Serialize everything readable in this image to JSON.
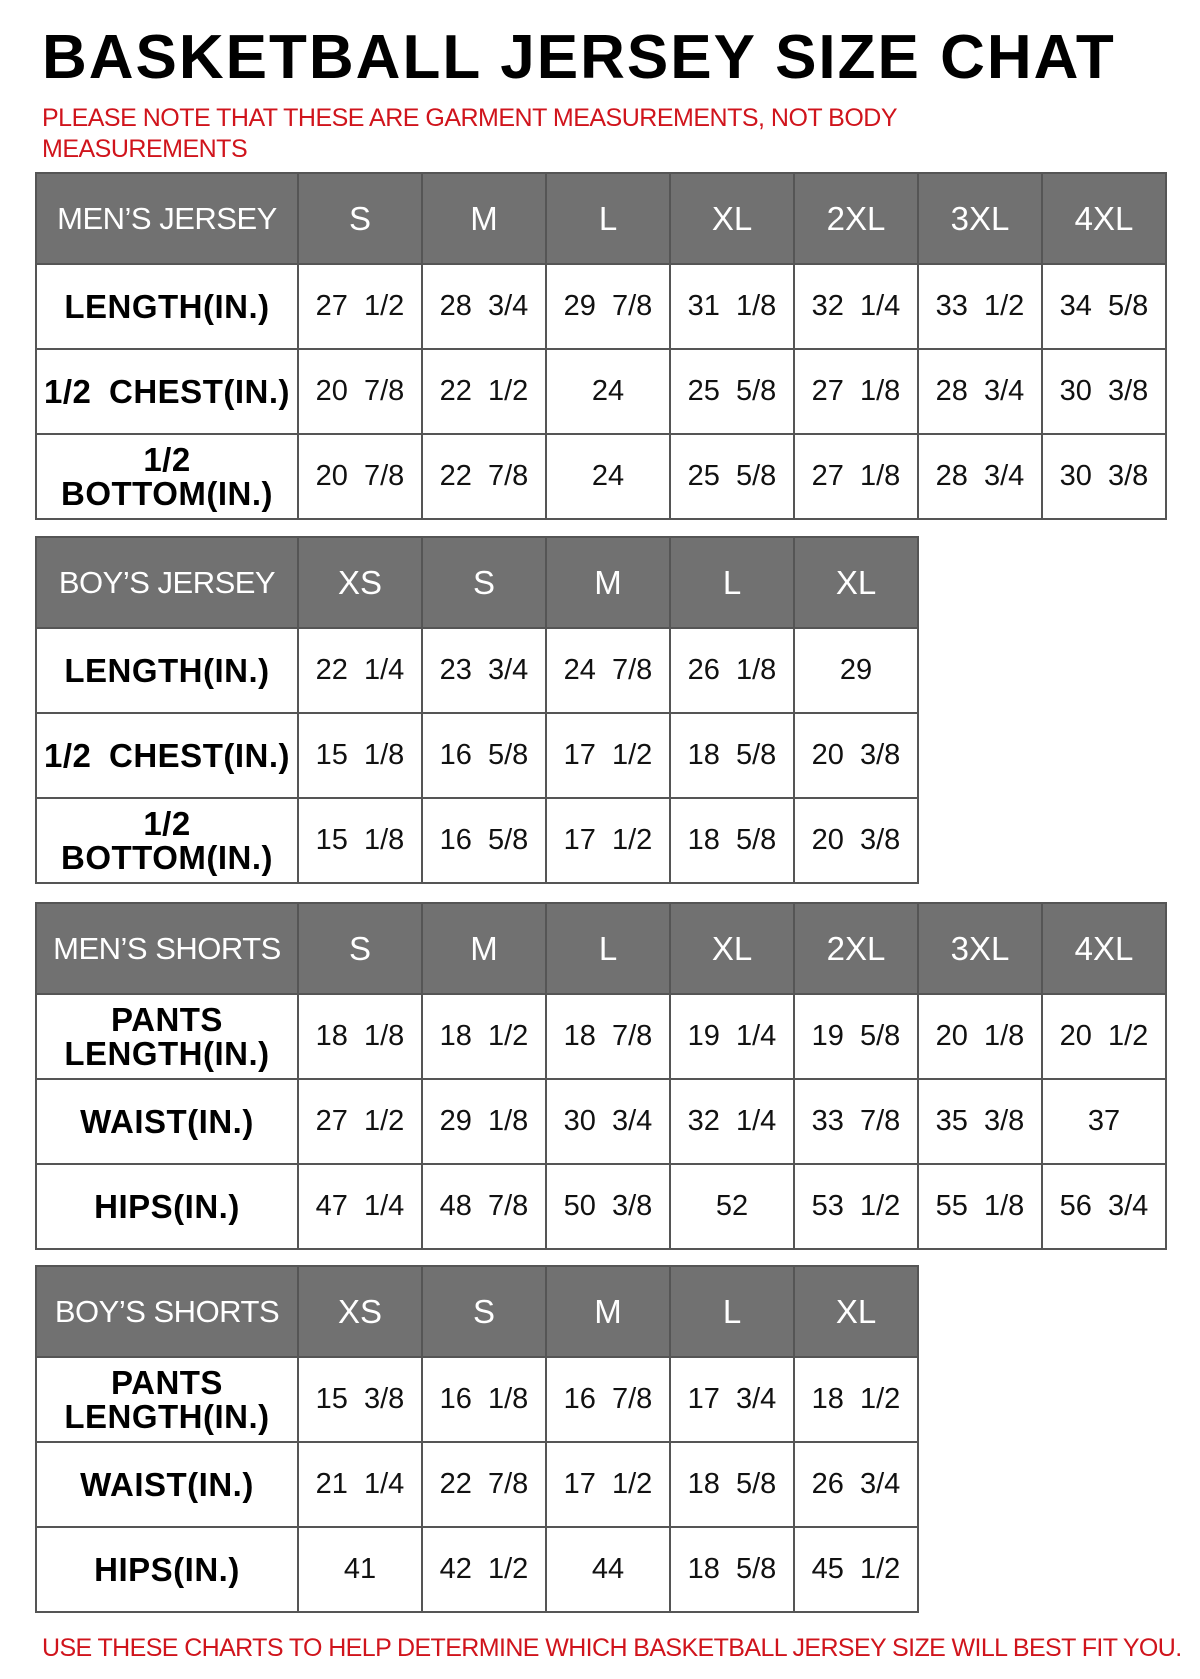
{
  "title": "BASKETBALL JERSEY SIZE CHAT",
  "note": "PLEASE NOTE THAT THESE ARE GARMENT MEASUREMENTS, NOT BODY MEASUREMENTS",
  "footer": "USE THESE CHARTS TO HELP DETERMINE WHICH BASKETBALL JERSEY SIZE WILL BEST FIT YOU.",
  "colors": {
    "header_bg": "#717171",
    "note_red": "#d0141c"
  },
  "tables": [
    {
      "name": "mens-jersey",
      "header": "MEN’S JERSEY",
      "sizes": [
        "S",
        "M",
        "L",
        "XL",
        "2XL",
        "3XL",
        "4XL"
      ],
      "rows": [
        {
          "label": "LENGTH(IN.)",
          "values": [
            "27 1/2",
            "28 3/4",
            "29 7/8",
            "31 1/8",
            "32 1/4",
            "33 1/2",
            "34 5/8"
          ]
        },
        {
          "label": "1/2 CHEST(IN.)",
          "values": [
            "20 7/8",
            "22 1/2",
            "24",
            "25 5/8",
            "27 1/8",
            "28 3/4",
            "30 3/8"
          ]
        },
        {
          "label": "1/2 BOTTOM(IN.)",
          "values": [
            "20 7/8",
            "22 7/8",
            "24",
            "25 5/8",
            "27 1/8",
            "28 3/4",
            "30 3/8"
          ]
        }
      ]
    },
    {
      "name": "boys-jersey",
      "header": "BOY’S JERSEY",
      "sizes": [
        "XS",
        "S",
        "M",
        "L",
        "XL"
      ],
      "rows": [
        {
          "label": "LENGTH(IN.)",
          "values": [
            "22 1/4",
            "23 3/4",
            "24 7/8",
            "26 1/8",
            "29"
          ]
        },
        {
          "label": "1/2 CHEST(IN.)",
          "values": [
            "15 1/8",
            "16 5/8",
            "17 1/2",
            "18 5/8",
            "20 3/8"
          ]
        },
        {
          "label": "1/2 BOTTOM(IN.)",
          "values": [
            "15 1/8",
            "16 5/8",
            "17 1/2",
            "18 5/8",
            "20 3/8"
          ]
        }
      ]
    },
    {
      "name": "mens-shorts",
      "header": "MEN’S SHORTS",
      "sizes": [
        "S",
        "M",
        "L",
        "XL",
        "2XL",
        "3XL",
        "4XL"
      ],
      "rows": [
        {
          "label": "PANTS LENGTH(IN.)",
          "values": [
            "18 1/8",
            "18 1/2",
            "18 7/8",
            "19 1/4",
            "19 5/8",
            "20 1/8",
            "20 1/2"
          ]
        },
        {
          "label": "WAIST(IN.)",
          "values": [
            "27 1/2",
            "29 1/8",
            "30 3/4",
            "32 1/4",
            "33 7/8",
            "35 3/8",
            "37"
          ]
        },
        {
          "label": "HIPS(IN.)",
          "values": [
            "47 1/4",
            "48 7/8",
            "50 3/8",
            "52",
            "53 1/2",
            "55 1/8",
            "56 3/4"
          ]
        }
      ]
    },
    {
      "name": "boys-shorts",
      "header": "BOY’S SHORTS",
      "sizes": [
        "XS",
        "S",
        "M",
        "L",
        "XL"
      ],
      "rows": [
        {
          "label": "PANTS LENGTH(IN.)",
          "values": [
            "15 3/8",
            "16 1/8",
            "16 7/8",
            "17 3/4",
            "18 1/2"
          ]
        },
        {
          "label": "WAIST(IN.)",
          "values": [
            "21 1/4",
            "22 7/8",
            "17 1/2",
            "18 5/8",
            "26 3/4"
          ]
        },
        {
          "label": "HIPS(IN.)",
          "values": [
            "41",
            "42 1/2",
            "44",
            "18 5/8",
            "45 1/2"
          ]
        }
      ]
    }
  ]
}
